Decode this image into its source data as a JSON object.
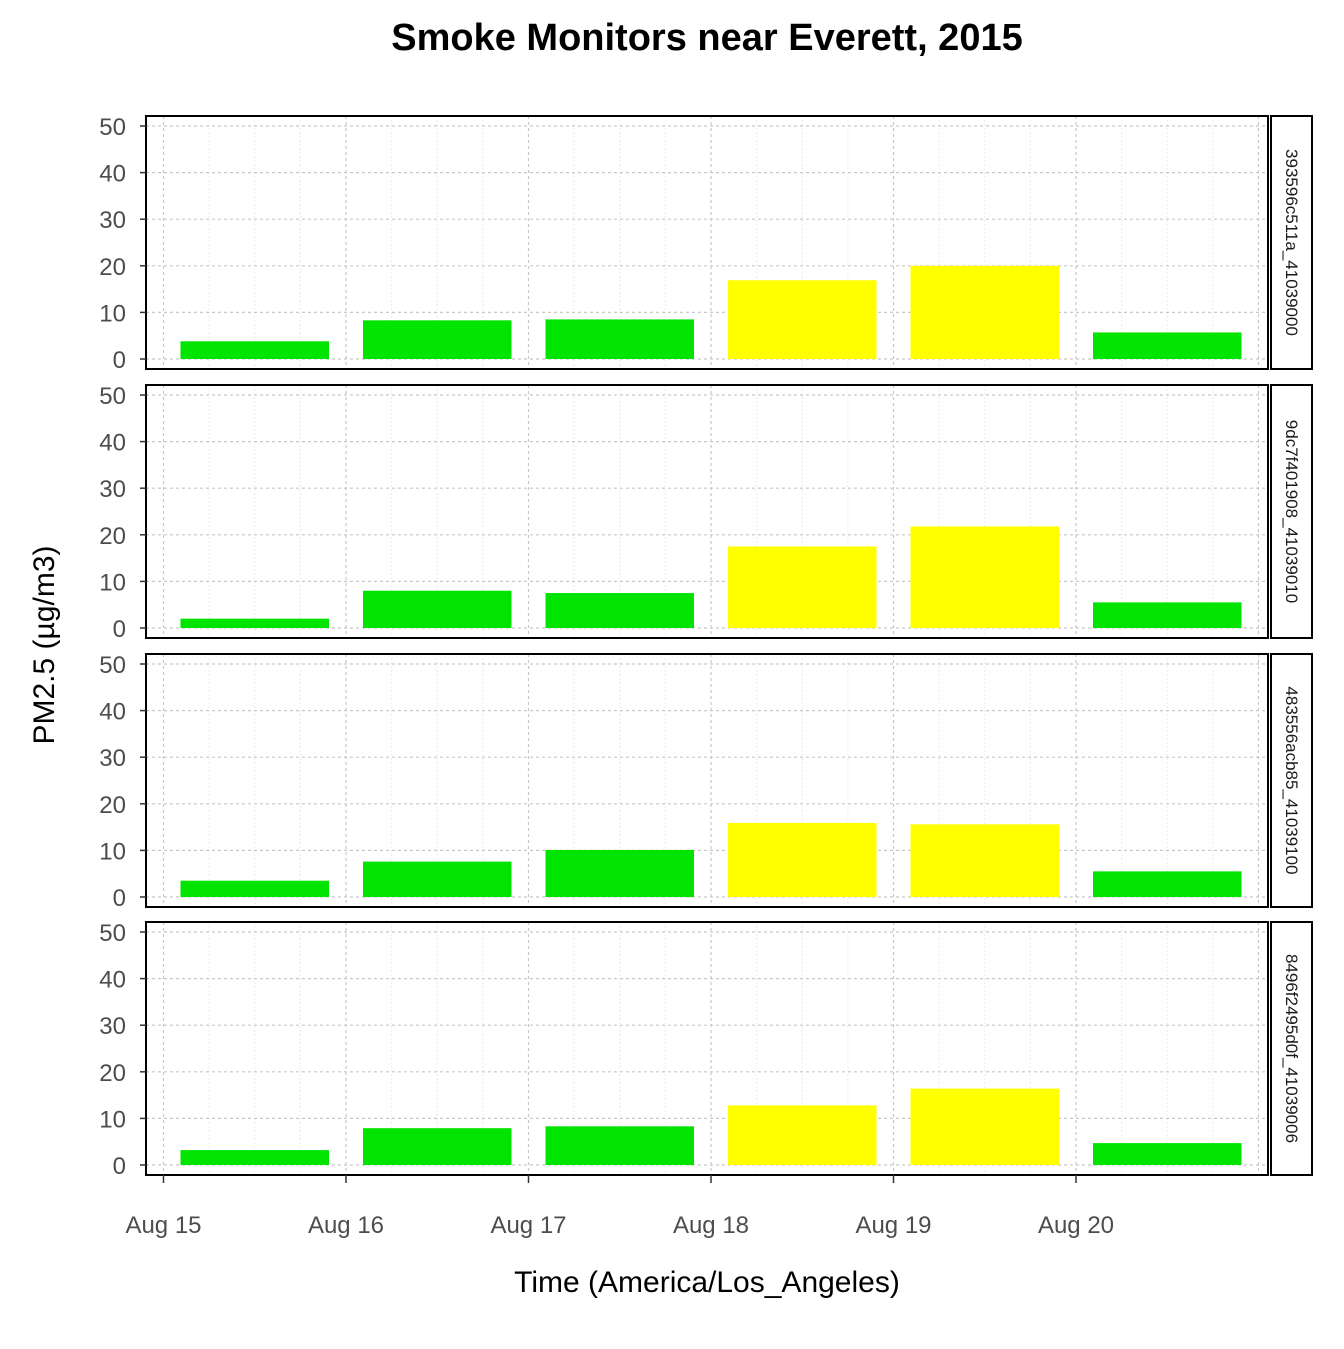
{
  "chart_data": {
    "type": "bar",
    "title": "Smoke Monitors near Everett, 2015",
    "xlabel": "Time (America/Los_Angeles)",
    "ylabel": "PM2.5 (µg/m3)",
    "ylim": [
      0,
      50
    ],
    "yticks": [
      0,
      10,
      20,
      30,
      40,
      50
    ],
    "x_tick_labels": [
      "Aug 15",
      "Aug 16",
      "Aug 17",
      "Aug 18",
      "Aug 19",
      "Aug 20"
    ],
    "categories": [
      "2015-08-15",
      "2015-08-16",
      "2015-08-17",
      "2015-08-18",
      "2015-08-19",
      "2015-08-20"
    ],
    "grid": true,
    "colors": {
      "good": "#00e400",
      "moderate": "#ffff00"
    },
    "series": [
      {
        "name": "393596c511a_41039000",
        "values": [
          3.8,
          8.3,
          8.5,
          16.9,
          20.0,
          5.7
        ]
      },
      {
        "name": "9dc7f401908_41039010",
        "values": [
          2.0,
          8.0,
          7.5,
          17.5,
          21.8,
          5.5
        ]
      },
      {
        "name": "483556acb85_41039100",
        "values": [
          3.5,
          7.6,
          10.1,
          15.9,
          15.6,
          5.5
        ]
      },
      {
        "name": "8496f2495d0f_41039006",
        "values": [
          3.2,
          7.9,
          8.3,
          12.8,
          16.4,
          4.7
        ]
      }
    ]
  }
}
